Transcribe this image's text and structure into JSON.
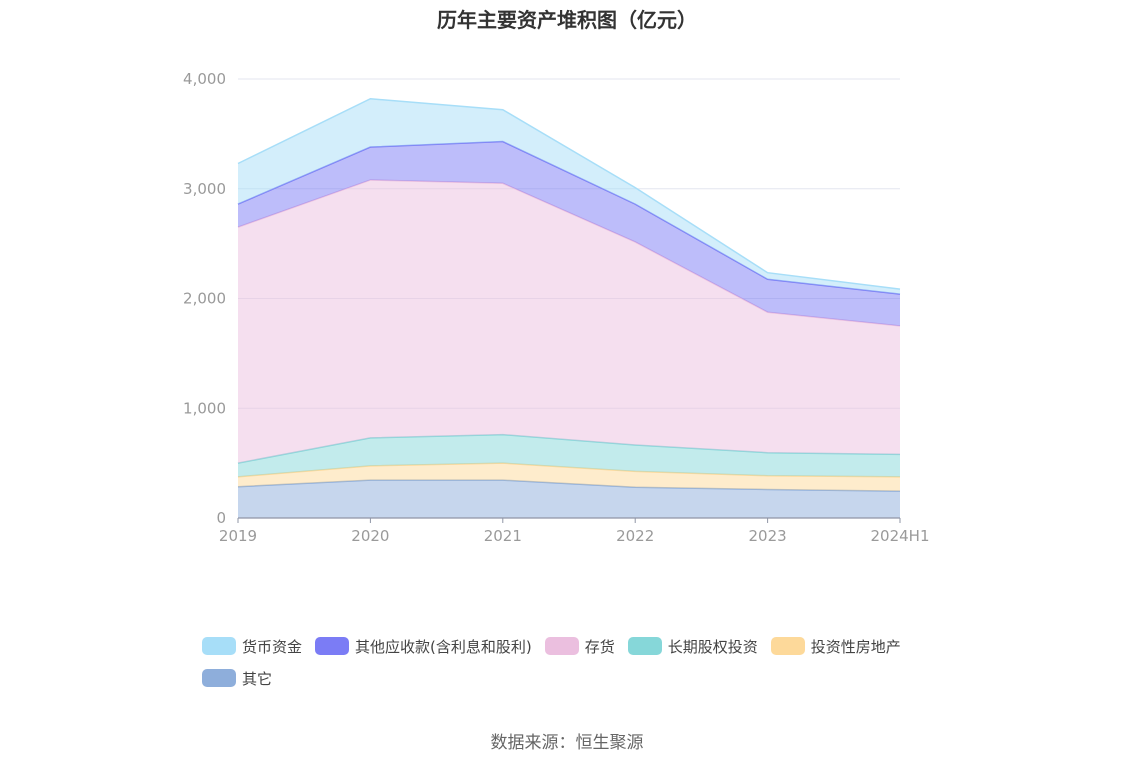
{
  "chart_data": {
    "type": "area",
    "stacked": true,
    "title": "历年主要资产堆积图（亿元）",
    "categories": [
      "2019",
      "2020",
      "2021",
      "2022",
      "2023",
      "2024H1"
    ],
    "ylim": [
      0,
      4000
    ],
    "yticks": [
      "0",
      "1,000",
      "2,000",
      "3,000",
      "4,000"
    ],
    "grid": true,
    "legend_position": "bottom",
    "series": [
      {
        "name": "其它",
        "color": "#8eaedb",
        "values": [
          285,
          345,
          345,
          280,
          260,
          245
        ]
      },
      {
        "name": "投资性房地产",
        "color": "#fdd99a",
        "values": [
          90,
          130,
          155,
          145,
          125,
          130
        ]
      },
      {
        "name": "长期股权投资",
        "color": "#86d7d9",
        "values": [
          125,
          255,
          260,
          240,
          210,
          205
        ]
      },
      {
        "name": "存货",
        "color": "#ebbfdf",
        "values": [
          2150,
          2350,
          2290,
          1850,
          1280,
          1170
        ]
      },
      {
        "name": "其他应收款(含利息和股利)",
        "color": "#7b7cf5",
        "values": [
          210,
          300,
          380,
          345,
          300,
          290
        ]
      },
      {
        "name": "货币资金",
        "color": "#a7def8",
        "values": [
          370,
          440,
          290,
          150,
          60,
          45
        ]
      }
    ]
  },
  "source": "数据来源：恒生聚源"
}
